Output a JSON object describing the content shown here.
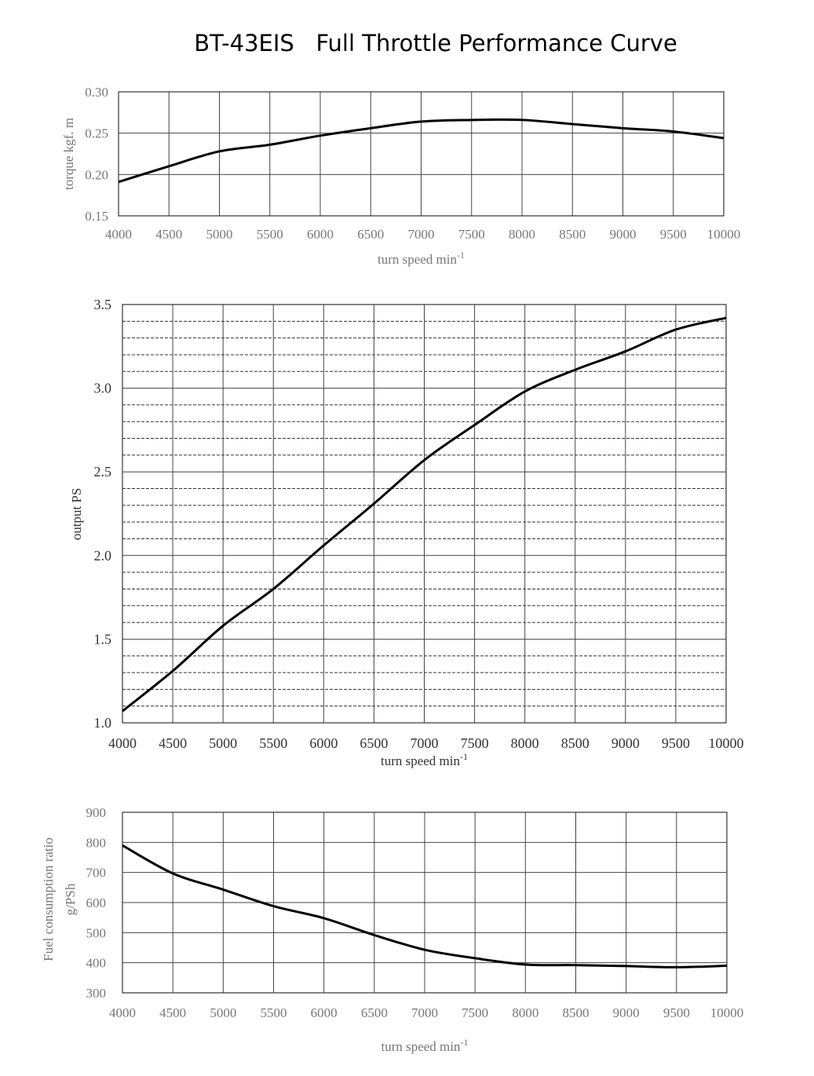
{
  "title": "BT-43EIS   Full Throttle Performance Curve",
  "chart_data": [
    {
      "type": "line",
      "name": "torque",
      "ylabel": "torque kgf. m",
      "xlabel": "turn speed  min",
      "xlabel_sup": "-1",
      "x": [
        4000,
        4500,
        5000,
        5500,
        6000,
        6500,
        7000,
        7500,
        8000,
        8500,
        9000,
        9500,
        10000
      ],
      "values": [
        0.191,
        0.21,
        0.228,
        0.236,
        0.247,
        0.256,
        0.264,
        0.266,
        0.266,
        0.261,
        0.256,
        0.252,
        0.244
      ],
      "xlim": [
        4000,
        10000
      ],
      "ylim": [
        0.15,
        0.3
      ],
      "xticks": [
        "4000",
        "4500",
        "5000",
        "5500",
        "6000",
        "6500",
        "7000",
        "7500",
        "8000",
        "8500",
        "9000",
        "9500",
        "10000"
      ],
      "yticks": [
        "0.15",
        "0.20",
        "0.25",
        "0.30"
      ],
      "grid": true
    },
    {
      "type": "line",
      "name": "output",
      "ylabel": "output PS",
      "xlabel": "turn speed  min",
      "xlabel_sup": "-1",
      "x": [
        4000,
        4500,
        5000,
        5500,
        6000,
        6500,
        7000,
        7500,
        8000,
        8500,
        9000,
        9500,
        10000
      ],
      "values": [
        1.07,
        1.31,
        1.58,
        1.8,
        2.06,
        2.31,
        2.57,
        2.78,
        2.98,
        3.11,
        3.22,
        3.35,
        3.42
      ],
      "xlim": [
        4000,
        10000
      ],
      "ylim": [
        1.0,
        3.5
      ],
      "xticks": [
        "4000",
        "4500",
        "5000",
        "5500",
        "6000",
        "6500",
        "7000",
        "7500",
        "8000",
        "8500",
        "9000",
        "9500",
        "10000"
      ],
      "yticks": [
        "1.0",
        "1.5",
        "2.0",
        "2.5",
        "3.0",
        "3.5"
      ],
      "minor_step": 0.1,
      "grid": true
    },
    {
      "type": "line",
      "name": "fuel",
      "ylabel": "Fuel consumption ratio",
      "ylabel2": "g/PSh",
      "xlabel": "turn speed  min",
      "xlabel_sup": "-1",
      "x": [
        4000,
        4500,
        5000,
        5500,
        6000,
        6500,
        7000,
        7500,
        8000,
        8500,
        9000,
        9500,
        10000
      ],
      "values": [
        790,
        697,
        643,
        588,
        548,
        492,
        443,
        415,
        394,
        392,
        389,
        385,
        390
      ],
      "xlim": [
        4000,
        10000
      ],
      "ylim": [
        300,
        900
      ],
      "xticks": [
        "4000",
        "4500",
        "5000",
        "5500",
        "6000",
        "6500",
        "7000",
        "7500",
        "8000",
        "8500",
        "9000",
        "9500",
        "10000"
      ],
      "yticks": [
        "300",
        "400",
        "500",
        "600",
        "700",
        "800",
        "900"
      ],
      "grid": true
    }
  ]
}
